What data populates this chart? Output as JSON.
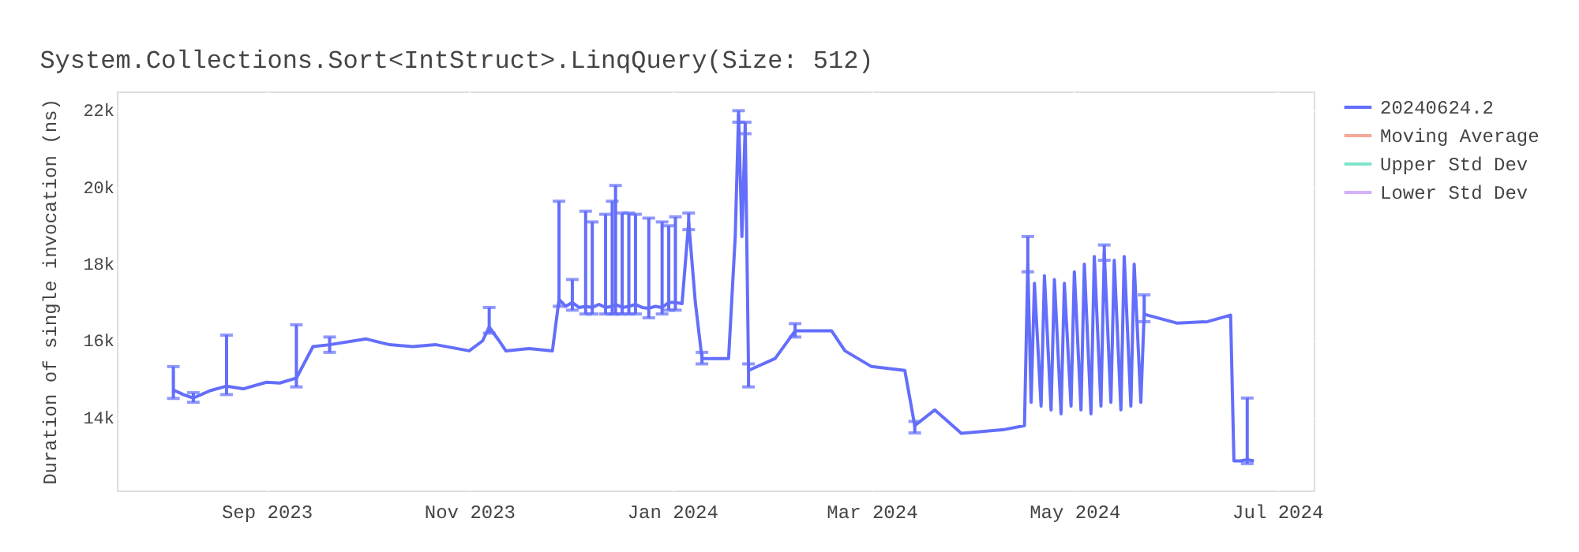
{
  "chart_data": {
    "type": "line",
    "title": "System.Collections.Sort<IntStruct>.LinqQuery(Size: 512)",
    "ylabel": "Duration of single invocation (ns)",
    "x": [
      "2023-08-04",
      "2023-08-07",
      "2023-08-10",
      "2023-08-15",
      "2023-08-20",
      "2023-08-25",
      "2023-09-01",
      "2023-09-05",
      "2023-09-10",
      "2023-09-15",
      "2023-09-20",
      "2023-10-01",
      "2023-10-08",
      "2023-10-15",
      "2023-10-22",
      "2023-11-01",
      "2023-11-05",
      "2023-11-07",
      "2023-11-10",
      "2023-11-12",
      "2023-11-19",
      "2023-11-26",
      "2023-11-28",
      "2023-11-30",
      "2023-12-02",
      "2023-12-04",
      "2023-12-06",
      "2023-12-08",
      "2023-12-10",
      "2023-12-12",
      "2023-12-14",
      "2023-12-15",
      "2023-12-17",
      "2023-12-19",
      "2023-12-21",
      "2023-12-23",
      "2023-12-25",
      "2023-12-27",
      "2023-12-29",
      "2023-12-31",
      "2024-01-02",
      "2024-01-04",
      "2024-01-06",
      "2024-01-08",
      "2024-01-10",
      "2024-01-18",
      "2024-01-20",
      "2024-01-21",
      "2024-01-22",
      "2024-01-23",
      "2024-01-24",
      "2024-02-01",
      "2024-02-07",
      "2024-02-18",
      "2024-02-22",
      "2024-03-01",
      "2024-03-11",
      "2024-03-14",
      "2024-03-20",
      "2024-03-28",
      "2024-04-10",
      "2024-04-16",
      "2024-04-17",
      "2024-04-18",
      "2024-04-19",
      "2024-04-21",
      "2024-04-22",
      "2024-04-24",
      "2024-04-25",
      "2024-04-27",
      "2024-04-28",
      "2024-04-30",
      "2024-05-01",
      "2024-05-03",
      "2024-05-04",
      "2024-05-06",
      "2024-05-07",
      "2024-05-09",
      "2024-05-10",
      "2024-05-12",
      "2024-05-13",
      "2024-05-15",
      "2024-05-16",
      "2024-05-18",
      "2024-05-19",
      "2024-05-21",
      "2024-05-22",
      "2024-05-23",
      "2024-06-01",
      "2024-06-10",
      "2024-06-17",
      "2024-06-18",
      "2024-06-20",
      "2024-06-22",
      "2024-06-24"
    ],
    "series": [
      {
        "name": "20240624.2",
        "color": "#636efa",
        "values": [
          14720,
          14600,
          14510,
          14700,
          14820,
          14750,
          14920,
          14900,
          15030,
          15850,
          15900,
          16050,
          15900,
          15850,
          15900,
          15740,
          16000,
          16360,
          16000,
          15740,
          15800,
          15740,
          17080,
          16900,
          17000,
          16870,
          16900,
          16870,
          16950,
          16870,
          16900,
          16950,
          16870,
          16900,
          16950,
          16870,
          16850,
          16900,
          16870,
          17000,
          17000,
          16970,
          19100,
          17000,
          15540,
          15540,
          18720,
          21900,
          18720,
          21590,
          15230,
          15540,
          16260,
          16260,
          15740,
          15330,
          15230,
          13790,
          14200,
          13590,
          13690,
          13790,
          18000,
          14400,
          17500,
          14300,
          17700,
          14200,
          17600,
          14100,
          17500,
          14300,
          17800,
          14200,
          18000,
          14100,
          18200,
          14300,
          18300,
          14400,
          18100,
          14200,
          18200,
          14300,
          18000,
          14400,
          16700,
          16670,
          16460,
          16500,
          16670,
          12870,
          12870,
          12900,
          12870
        ],
        "errors": [
          [
            14500,
            15330
          ],
          null,
          [
            14400,
            14650
          ],
          null,
          [
            14600,
            16150
          ],
          null,
          null,
          null,
          [
            14800,
            16420
          ],
          null,
          [
            15700,
            16100
          ],
          null,
          null,
          null,
          null,
          null,
          null,
          [
            16200,
            16870
          ],
          null,
          null,
          null,
          null,
          [
            16900,
            19640
          ],
          null,
          [
            16800,
            17600
          ],
          null,
          [
            16700,
            19380
          ],
          [
            16700,
            19100
          ],
          null,
          [
            16700,
            19300
          ],
          [
            16700,
            19640
          ],
          [
            16700,
            20050
          ],
          [
            16700,
            19330
          ],
          [
            16700,
            19330
          ],
          [
            16700,
            19300
          ],
          null,
          [
            16600,
            19200
          ],
          null,
          [
            16700,
            19100
          ],
          [
            16800,
            19000
          ],
          [
            16800,
            19230
          ],
          null,
          [
            18900,
            19330
          ],
          null,
          [
            15400,
            15700
          ],
          null,
          null,
          [
            21700,
            22000
          ],
          null,
          [
            21400,
            21700
          ],
          [
            14800,
            15400
          ],
          null,
          [
            16100,
            16450
          ],
          null,
          null,
          null,
          null,
          [
            13600,
            13900
          ],
          null,
          null,
          null,
          null,
          [
            17800,
            18720
          ],
          null,
          null,
          null,
          null,
          null,
          null,
          null,
          null,
          null,
          null,
          null,
          null,
          null,
          null,
          null,
          [
            18100,
            18500
          ],
          null,
          null,
          null,
          null,
          null,
          null,
          null,
          [
            16500,
            17200
          ],
          null,
          null,
          null,
          null,
          null,
          null,
          [
            12800,
            14510
          ],
          null
        ]
      },
      {
        "name": "Moving Average",
        "color": "#f5a898",
        "values": [
          null,
          null,
          null,
          null,
          null,
          null,
          null,
          null,
          null,
          null,
          null,
          null,
          null,
          null,
          null,
          null,
          null,
          null,
          null,
          null,
          null,
          null,
          null,
          null,
          null,
          null,
          null,
          null,
          null,
          null,
          null,
          null,
          null,
          null,
          null,
          null,
          null,
          null,
          null,
          null,
          null,
          null,
          null,
          null,
          null,
          null,
          null,
          null,
          null,
          null,
          null,
          null,
          null,
          null,
          null,
          null,
          null,
          null,
          null,
          null,
          null,
          null,
          null,
          null,
          null,
          null,
          null,
          null,
          null,
          null,
          null,
          null,
          null,
          null,
          null,
          null,
          null,
          null,
          null,
          null,
          null,
          null,
          null,
          null,
          null,
          null,
          null,
          null,
          null,
          null,
          null,
          null,
          null,
          null,
          null
        ]
      },
      {
        "name": "Upper Std Dev",
        "color": "#7fe5ca",
        "values": [
          null,
          null,
          null,
          null,
          null,
          null,
          null,
          null,
          null,
          null,
          null,
          null,
          null,
          null,
          null,
          null,
          null,
          null,
          null,
          null,
          null,
          null,
          null,
          null,
          null,
          null,
          null,
          null,
          null,
          null,
          null,
          null,
          null,
          null,
          null,
          null,
          null,
          null,
          null,
          null,
          null,
          null,
          null,
          null,
          null,
          null,
          null,
          null,
          null,
          null,
          null,
          null,
          null,
          null,
          null,
          null,
          null,
          null,
          null,
          null,
          null,
          null,
          null,
          null,
          null,
          null,
          null,
          null,
          null,
          null,
          null,
          null,
          null,
          null,
          null,
          null,
          null,
          null,
          null,
          null,
          null,
          null,
          null,
          null,
          null,
          null,
          null,
          null,
          null,
          null,
          null,
          null,
          null,
          null,
          null
        ]
      },
      {
        "name": "Lower Std Dev",
        "color": "#d5b1fc",
        "values": [
          null,
          null,
          null,
          null,
          null,
          null,
          null,
          null,
          null,
          null,
          null,
          null,
          null,
          null,
          null,
          null,
          null,
          null,
          null,
          null,
          null,
          null,
          null,
          null,
          null,
          null,
          null,
          null,
          null,
          null,
          null,
          null,
          null,
          null,
          null,
          null,
          null,
          null,
          null,
          null,
          null,
          null,
          null,
          null,
          null,
          null,
          null,
          null,
          null,
          null,
          null,
          null,
          null,
          null,
          null,
          null,
          null,
          null,
          null,
          null,
          null,
          null,
          null,
          null,
          null,
          null,
          null,
          null,
          null,
          null,
          null,
          null,
          null,
          null,
          null,
          null,
          null,
          null,
          null,
          null,
          null,
          null,
          null,
          null,
          null,
          null,
          null,
          null,
          null,
          null,
          null,
          null,
          null,
          null,
          null
        ]
      }
    ],
    "xlim": [
      "2023-07-18",
      "2024-07-12"
    ],
    "xticks": [
      {
        "value": "2023-09-01",
        "label": "Sep 2023"
      },
      {
        "value": "2023-11-01",
        "label": "Nov 2023"
      },
      {
        "value": "2024-01-01",
        "label": "Jan 2024"
      },
      {
        "value": "2024-03-01",
        "label": "Mar 2024"
      },
      {
        "value": "2024-05-01",
        "label": "May 2024"
      },
      {
        "value": "2024-07-01",
        "label": "Jul 2024"
      }
    ],
    "ylim": [
      12100,
      22500
    ],
    "yticks": [
      {
        "value": 14000,
        "label": "14k"
      },
      {
        "value": 16000,
        "label": "16k"
      },
      {
        "value": 18000,
        "label": "18k"
      },
      {
        "value": 20000,
        "label": "20k"
      },
      {
        "value": 22000,
        "label": "22k"
      }
    ],
    "grid": true,
    "legend": "top right",
    "marker": "none",
    "line_style": "solid"
  }
}
